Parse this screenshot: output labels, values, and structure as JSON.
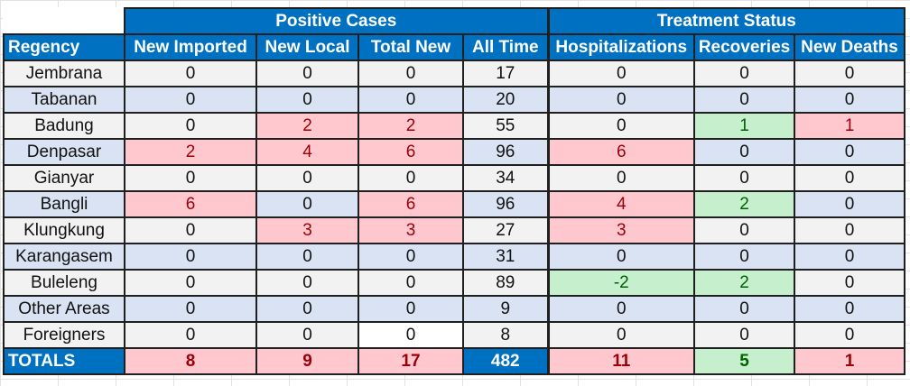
{
  "group_headers": {
    "positive_cases": "Positive Cases",
    "treatment_status": "Treatment Status"
  },
  "columns": [
    "Regency",
    "New Imported",
    "New Local",
    "Total New",
    "All Time",
    "Hospitalizations",
    "Recoveries",
    "New Deaths"
  ],
  "rows": [
    {
      "regency": "Jembrana",
      "values": [
        "0",
        "0",
        "0",
        "17",
        "0",
        "0",
        "0"
      ]
    },
    {
      "regency": "Tabanan",
      "values": [
        "0",
        "0",
        "0",
        "20",
        "0",
        "0",
        "0"
      ]
    },
    {
      "regency": "Badung",
      "values": [
        "0",
        "2",
        "2",
        "55",
        "0",
        "1",
        "1"
      ]
    },
    {
      "regency": "Denpasar",
      "values": [
        "2",
        "4",
        "6",
        "96",
        "6",
        "0",
        "0"
      ]
    },
    {
      "regency": "Gianyar",
      "values": [
        "0",
        "0",
        "0",
        "34",
        "0",
        "0",
        "0"
      ]
    },
    {
      "regency": "Bangli",
      "values": [
        "6",
        "0",
        "6",
        "96",
        "4",
        "2",
        "0"
      ]
    },
    {
      "regency": "Klungkung",
      "values": [
        "0",
        "3",
        "3",
        "27",
        "3",
        "0",
        "0"
      ]
    },
    {
      "regency": "Karangasem",
      "values": [
        "0",
        "0",
        "0",
        "31",
        "0",
        "0",
        "0"
      ]
    },
    {
      "regency": "Buleleng",
      "values": [
        "0",
        "0",
        "0",
        "89",
        "-2",
        "2",
        "0"
      ]
    },
    {
      "regency": "Other Areas",
      "values": [
        "0",
        "0",
        "0",
        "9",
        "0",
        "0",
        "0"
      ]
    },
    {
      "regency": "Foreigners",
      "values": [
        "0",
        "0",
        "0",
        "8",
        "0",
        "0",
        "0"
      ]
    }
  ],
  "totals": {
    "label": "TOTALS",
    "values": [
      "8",
      "9",
      "17",
      "482",
      "11",
      "5",
      "1"
    ]
  },
  "colors": {
    "header_blue": "#0070c0",
    "band_gray": "#f2f2f2",
    "band_blue": "#dae3f3",
    "highlight_red_bg": "#ffc7ce",
    "highlight_red_text": "#9c0006",
    "highlight_green_bg": "#c6efce",
    "highlight_green_text": "#006100"
  }
}
